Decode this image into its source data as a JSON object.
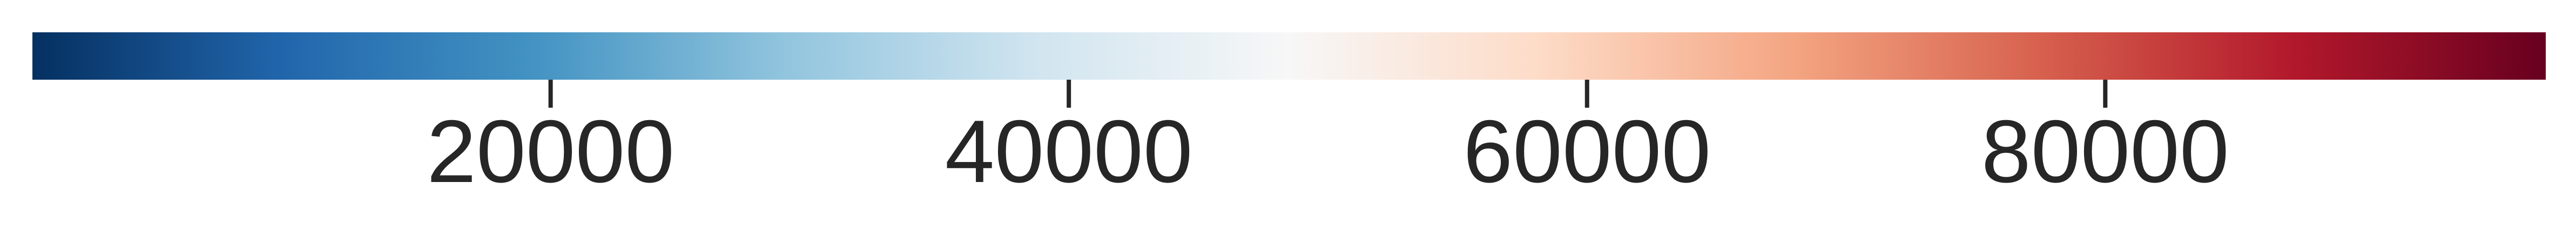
{
  "chart_data": {
    "type": "heatmap",
    "colormap": "RdBu_r",
    "orientation": "horizontal",
    "range": [
      0,
      97000
    ],
    "ticks": [
      20000,
      40000,
      60000,
      80000
    ],
    "tick_labels": [
      "20000",
      "40000",
      "60000",
      "80000"
    ],
    "colors": [
      "#053061",
      "#2166ac",
      "#4393c3",
      "#92c5de",
      "#d1e5f0",
      "#f7f7f7",
      "#fddbc7",
      "#f4a582",
      "#d6604d",
      "#b2182b",
      "#67001f"
    ],
    "tick_color": "#262626",
    "label_color": "#262626"
  }
}
